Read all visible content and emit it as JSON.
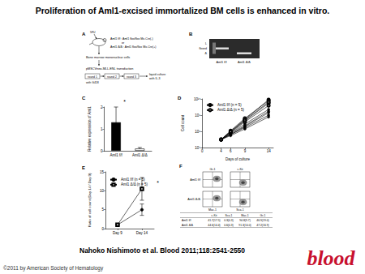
{
  "title": "Proliferation of Aml1-excised immortalized BM cells is enhanced in vitro.",
  "citation": "Nahoko Nishimoto et al. Blood 2011;118:2541-2550",
  "copyright": "©2011 by American Society of Hematology",
  "logo": "blood",
  "panels": {
    "A": {
      "panel": "A",
      "injection": "5FU",
      "genotype_1": "Aml1 f/f : Aml1 flox/flox Mx-Cre(-)",
      "or": "or",
      "genotype_2": "Aml1 Δ/Δ : Aml1 flox/flox Mx-Cre(+)",
      "cells": "Bone marrow mononuclear cells",
      "transduction": "pMSCVneo-MLL-ENL transduction",
      "rounds": [
        "round 1",
        "round 2",
        "round 3"
      ],
      "selection": "with G418",
      "culture": [
        "liquid culture",
        "with IL-3"
      ]
    },
    "B": {
      "panel": "B",
      "bands": [
        "L",
        "floxed",
        "Δ"
      ],
      "lanes": [
        "Aml1 f/f",
        "Aml1 Δ/Δ"
      ]
    },
    "F": {
      "panel": "F",
      "axes_top": [
        "Gr-1",
        "c-Kit"
      ],
      "axes_bottom": [
        "Mac-1",
        "Sca-1"
      ],
      "rows": [
        "Aml1 f/f",
        "Aml1 Δ/Δ"
      ],
      "table": {
        "header": [
          "c-Kit",
          "Sca-1",
          "Mac-1",
          "Gr-1"
        ],
        "rows": [
          [
            "Aml1 f/f",
            "41.7(17.5)",
            "0.3(0.3)",
            "94.8(9.7)",
            "46.9(19.0)"
          ],
          [
            "Aml1 Δ/Δ",
            "44.6(14.4)",
            "0.6(0.3)",
            "91.3(10.0)",
            "47.2(16.9)"
          ]
        ]
      }
    }
  },
  "chart_data": [
    {
      "panel": "C",
      "type": "bar",
      "categories": [
        "Aml1 f/f",
        "Aml1 Δ/Δ"
      ],
      "values": [
        1.3,
        0.1
      ],
      "errors": [
        0.7,
        0.05
      ],
      "colors": [
        "#000000",
        "#ffffff"
      ],
      "ylabel": "Relative expression of Aml1",
      "ylim": [
        0,
        2
      ],
      "yticks": [
        0,
        1,
        2
      ],
      "annotation": "*",
      "grid": false
    },
    {
      "panel": "D",
      "type": "line",
      "log": "y",
      "xlabel": "Days of culture",
      "ylabel": "Cell count",
      "x": [
        4,
        6,
        9,
        14
      ],
      "xlim": [
        0,
        15
      ],
      "xticks": [
        0,
        4,
        6,
        9,
        14
      ],
      "ylim": [
        10000,
        10000000000
      ],
      "yticks": [
        {
          "value": 10000,
          "label": "10⁴"
        },
        {
          "value": 1000000,
          "label": "10⁶"
        },
        {
          "value": 100000000,
          "label": "10⁸"
        },
        {
          "value": 10000000000,
          "label": "10¹⁰"
        }
      ],
      "legend": "top-left",
      "grid": false,
      "series": [
        {
          "name": "Aml1 f/f (n = 5)",
          "color": "#000000",
          "marker": "circle",
          "values": [
            100000,
            400000,
            3000000,
            100000000
          ]
        },
        {
          "name": "Aml1 f/f (n = 5)",
          "color": "#000000",
          "marker": "circle",
          "values": [
            100000,
            500000,
            5000000,
            300000000
          ]
        },
        {
          "name": "Aml1 f/f (n = 5)",
          "color": "#000000",
          "marker": "circle",
          "values": [
            100000,
            300000,
            2000000,
            60000000
          ]
        },
        {
          "name": "Aml1 f/f (n = 5)",
          "color": "#000000",
          "marker": "circle",
          "values": [
            100000,
            600000,
            8000000,
            500000000
          ]
        },
        {
          "name": "Aml1 f/f (n = 5)",
          "color": "#000000",
          "marker": "circle",
          "values": [
            100000,
            400000,
            4000000,
            200000000
          ]
        },
        {
          "name": "Aml1 Δ/Δ (n = 5)",
          "color": "#000000",
          "marker": "emptyCircle",
          "values": [
            100000,
            800000,
            20000000,
            3000000000
          ]
        },
        {
          "name": "Aml1 Δ/Δ (n = 5)",
          "color": "#000000",
          "marker": "emptyCircle",
          "values": [
            100000,
            1000000,
            30000000,
            8000000000
          ]
        },
        {
          "name": "Aml1 Δ/Δ (n = 5)",
          "color": "#000000",
          "marker": "emptyCircle",
          "values": [
            100000,
            700000,
            15000000,
            1500000000
          ]
        },
        {
          "name": "Aml1 Δ/Δ (n = 5)",
          "color": "#000000",
          "marker": "emptyCircle",
          "values": [
            100000,
            1200000,
            40000000,
            6000000000
          ]
        },
        {
          "name": "Aml1 Δ/Δ (n = 5)",
          "color": "#000000",
          "marker": "emptyCircle",
          "values": [
            100000,
            900000,
            25000000,
            4000000000
          ]
        }
      ]
    },
    {
      "panel": "E",
      "type": "line",
      "categories": [
        "Day 9",
        "Day 14"
      ],
      "ylabel": "Ratio of cell count (Day 14 / Day 9)",
      "ylim": [
        0,
        15
      ],
      "yticks": [
        0,
        5,
        10,
        15
      ],
      "legend": "top-left",
      "annotation": "*",
      "grid": false,
      "series": [
        {
          "name": "Aml1 f/f (n = 5)",
          "color": "#000000",
          "marker": "circle",
          "values": [
            1,
            5
          ],
          "errors": [
            0,
            1.5
          ]
        },
        {
          "name": "Aml1 Δ/Δ (n = 5)",
          "color": "#000000",
          "marker": "emptyRect",
          "values": [
            1,
            10.5
          ],
          "errors": [
            0,
            3
          ]
        }
      ]
    }
  ]
}
